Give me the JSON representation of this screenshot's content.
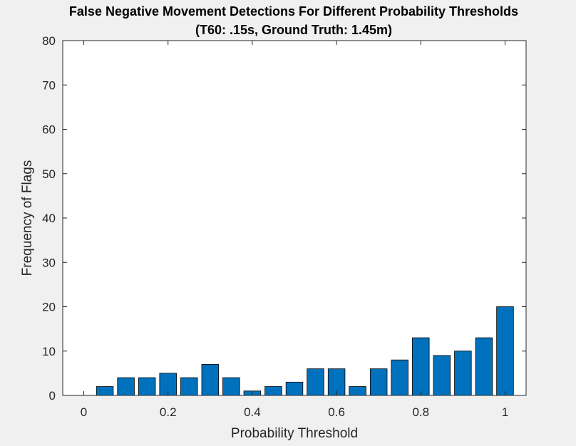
{
  "chart_data": {
    "type": "bar",
    "title": "False Negative Movement Detections For Different Probability Thresholds",
    "subtitle": "(T60: .15s, Ground Truth: 1.45m)",
    "xlabel": "Probability Threshold",
    "ylabel": "Frequency of Flags",
    "xlim": [
      -0.05,
      1.05
    ],
    "ylim": [
      0,
      80
    ],
    "xticks": [
      0,
      0.2,
      0.4,
      0.6,
      0.8,
      1
    ],
    "xtick_labels": [
      "0",
      "0.2",
      "0.4",
      "0.6",
      "0.8",
      "1"
    ],
    "yticks": [
      0,
      10,
      20,
      30,
      40,
      50,
      60,
      70,
      80
    ],
    "ytick_labels": [
      "0",
      "10",
      "20",
      "30",
      "40",
      "50",
      "60",
      "70",
      "80"
    ],
    "bar_width": 0.04,
    "bar_color": "#0072bd",
    "x": [
      0,
      0.05,
      0.1,
      0.15,
      0.2,
      0.25,
      0.3,
      0.35,
      0.4,
      0.45,
      0.5,
      0.55,
      0.6,
      0.65,
      0.7,
      0.75,
      0.8,
      0.85,
      0.9,
      0.95,
      1.0
    ],
    "values": [
      0,
      2,
      4,
      4,
      5,
      4,
      7,
      4,
      1,
      2,
      3,
      6,
      6,
      2,
      6,
      8,
      13,
      9,
      10,
      13,
      20
    ],
    "grid": false,
    "legend": "none"
  }
}
